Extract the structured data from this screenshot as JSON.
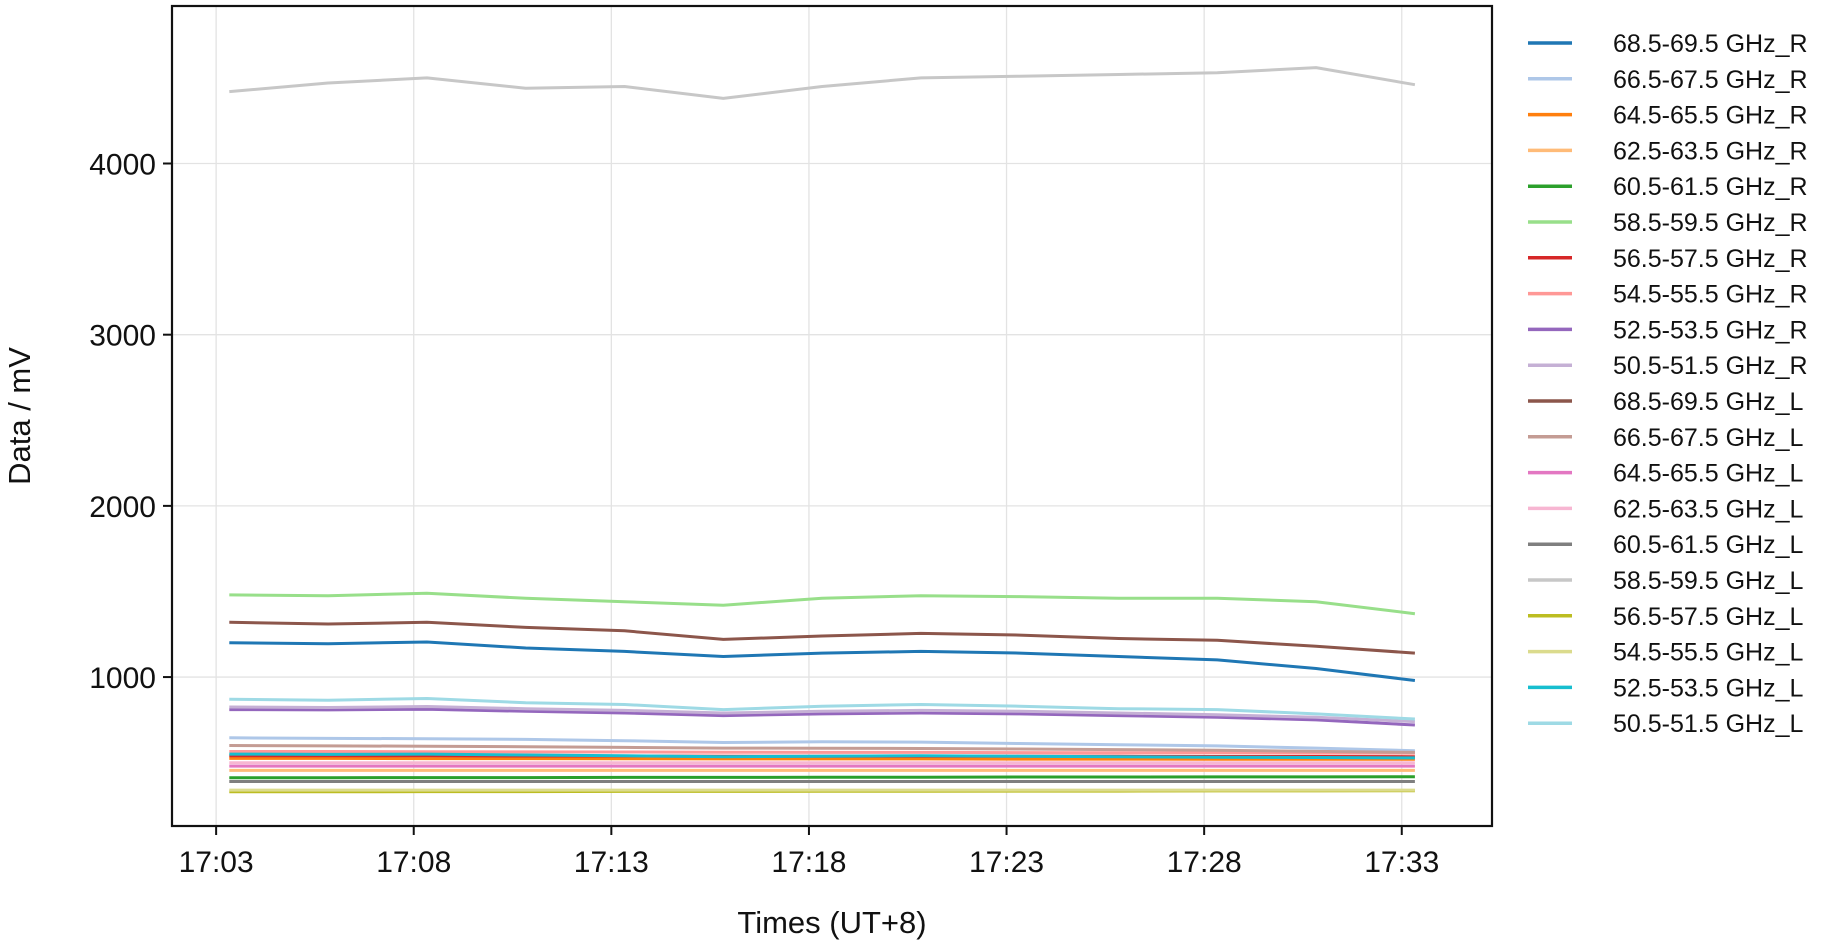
{
  "chart_data": {
    "type": "line",
    "xlabel": "Times (UT+8)",
    "ylabel": "Data / mV",
    "x_ticks": [
      "17:03",
      "17:08",
      "17:13",
      "17:18",
      "17:23",
      "17:28",
      "17:33"
    ],
    "y_ticks": [
      1000,
      2000,
      3000,
      4000
    ],
    "xlim": [
      "17:01:53",
      "17:35:17"
    ],
    "ylim": [
      130,
      4920
    ],
    "grid": true,
    "legend": "outside-right",
    "x": [
      "17:03:20",
      "17:05:50",
      "17:08:20",
      "17:10:50",
      "17:13:20",
      "17:15:50",
      "17:18:20",
      "17:20:50",
      "17:23:20",
      "17:25:50",
      "17:28:20",
      "17:30:50",
      "17:33:20"
    ],
    "series": [
      {
        "name": "68.5-69.5 GHz_R",
        "color": "#1f77b4",
        "values": [
          1200,
          1195,
          1205,
          1170,
          1150,
          1120,
          1140,
          1150,
          1140,
          1120,
          1100,
          1050,
          980
        ]
      },
      {
        "name": "66.5-67.5 GHz_R",
        "color": "#aec7e8",
        "values": [
          645,
          642,
          640,
          636,
          628,
          618,
          622,
          620,
          612,
          605,
          598,
          585,
          570
        ]
      },
      {
        "name": "64.5-65.5 GHz_R",
        "color": "#ff7f0e",
        "values": [
          525,
          525,
          524,
          524,
          523,
          522,
          522,
          522,
          521,
          521,
          520,
          520,
          520
        ]
      },
      {
        "name": "62.5-63.5 GHz_R",
        "color": "#ffbb78",
        "values": [
          455,
          455,
          455,
          455,
          455,
          455,
          455,
          455,
          455,
          455,
          455,
          455,
          455
        ]
      },
      {
        "name": "60.5-61.5 GHz_R",
        "color": "#2ca02c",
        "values": [
          412,
          412,
          413,
          413,
          414,
          414,
          415,
          415,
          416,
          416,
          417,
          417,
          418
        ]
      },
      {
        "name": "58.5-59.5 GHz_R",
        "color": "#98df8a",
        "values": [
          1480,
          1475,
          1490,
          1460,
          1440,
          1420,
          1460,
          1475,
          1470,
          1460,
          1460,
          1440,
          1370
        ]
      },
      {
        "name": "56.5-57.5 GHz_R",
        "color": "#d62728",
        "values": [
          540,
          540,
          540,
          539,
          539,
          538,
          538,
          538,
          537,
          537,
          536,
          536,
          535
        ]
      },
      {
        "name": "54.5-55.5 GHz_R",
        "color": "#ff9896",
        "values": [
          565,
          565,
          564,
          563,
          562,
          561,
          560,
          560,
          559,
          558,
          557,
          556,
          555
        ]
      },
      {
        "name": "52.5-53.5 GHz_R",
        "color": "#9467bd",
        "values": [
          810,
          808,
          812,
          800,
          790,
          775,
          785,
          790,
          785,
          775,
          765,
          750,
          720
        ]
      },
      {
        "name": "50.5-51.5 GHz_R",
        "color": "#c5b0d5",
        "values": [
          825,
          822,
          828,
          815,
          805,
          790,
          800,
          805,
          800,
          790,
          780,
          765,
          740
        ]
      },
      {
        "name": "68.5-69.5 GHz_L",
        "color": "#8c564b",
        "values": [
          1320,
          1310,
          1320,
          1290,
          1270,
          1220,
          1240,
          1255,
          1245,
          1225,
          1215,
          1180,
          1140
        ]
      },
      {
        "name": "66.5-67.5 GHz_L",
        "color": "#c49c94",
        "values": [
          600,
          598,
          596,
          593,
          589,
          585,
          584,
          583,
          580,
          576,
          572,
          566,
          560
        ]
      },
      {
        "name": "64.5-65.5 GHz_L",
        "color": "#e377c2",
        "values": [
          480,
          480,
          480,
          480,
          480,
          480,
          480,
          480,
          480,
          480,
          480,
          480,
          480
        ]
      },
      {
        "name": "62.5-63.5 GHz_L",
        "color": "#f7b6d2",
        "values": [
          500,
          500,
          500,
          500,
          500,
          500,
          500,
          500,
          500,
          500,
          500,
          500,
          500
        ]
      },
      {
        "name": "60.5-61.5 GHz_L",
        "color": "#7f7f7f",
        "values": [
          390,
          390,
          390,
          390,
          390,
          390,
          390,
          390,
          390,
          390,
          390,
          390,
          390
        ]
      },
      {
        "name": "58.5-59.5 GHz_L",
        "color": "#c7c7c7",
        "values": [
          4420,
          4470,
          4500,
          4440,
          4450,
          4380,
          4450,
          4500,
          4510,
          4520,
          4530,
          4560,
          4460
        ]
      },
      {
        "name": "56.5-57.5 GHz_L",
        "color": "#bcbd22",
        "values": [
          330,
          330,
          331,
          331,
          332,
          332,
          333,
          333,
          334,
          334,
          335,
          335,
          336
        ]
      },
      {
        "name": "54.5-55.5 GHz_L",
        "color": "#dbdb8d",
        "values": [
          340,
          340,
          340,
          340,
          340,
          340,
          340,
          340,
          340,
          340,
          340,
          340,
          340
        ]
      },
      {
        "name": "52.5-53.5 GHz_L",
        "color": "#17becf",
        "values": [
          550,
          548,
          550,
          545,
          540,
          535,
          538,
          540,
          538,
          535,
          532,
          530,
          528
        ]
      },
      {
        "name": "50.5-51.5 GHz_L",
        "color": "#9edae5",
        "values": [
          870,
          865,
          875,
          850,
          840,
          810,
          830,
          840,
          830,
          815,
          810,
          785,
          755
        ]
      }
    ]
  }
}
